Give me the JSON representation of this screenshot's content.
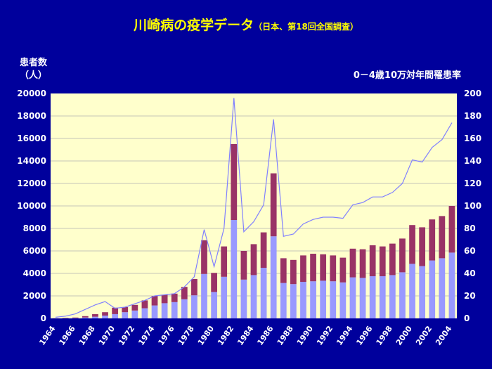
{
  "colors": {
    "background": "#00009c",
    "plot_area": "#ffffcc",
    "bar_lower": "#9999ff",
    "bar_upper": "#993366",
    "line": "#8080ff",
    "text": "#ffffff",
    "title": "#ffff00"
  },
  "chart_data": {
    "type": "bar",
    "title": "川崎病の疫学データ",
    "subtitle": "（日本、第18回全国調査）",
    "ylabel_line1": "患者数",
    "ylabel_line2": "（人）",
    "y2label": "0－4歳10万対年間罹患率",
    "ylim": [
      0,
      20000
    ],
    "y2lim": [
      0,
      200
    ],
    "yticks": [
      0,
      2000,
      4000,
      6000,
      8000,
      10000,
      12000,
      14000,
      16000,
      18000,
      20000
    ],
    "y2ticks": [
      0,
      20,
      40,
      60,
      80,
      100,
      120,
      140,
      160,
      180,
      200
    ],
    "years": [
      1964,
      1965,
      1966,
      1967,
      1968,
      1969,
      1970,
      1971,
      1972,
      1973,
      1974,
      1975,
      1976,
      1977,
      1978,
      1979,
      1980,
      1981,
      1982,
      1983,
      1984,
      1985,
      1986,
      1987,
      1988,
      1989,
      1990,
      1991,
      1992,
      1993,
      1994,
      1995,
      1996,
      1997,
      1998,
      1999,
      2000,
      2001,
      2002,
      2003,
      2004
    ],
    "xtick_labels": [
      "1964",
      "",
      "1966",
      "",
      "1968",
      "",
      "1970",
      "",
      "1972",
      "",
      "1974",
      "",
      "1976",
      "",
      "1978",
      "",
      "1980",
      "",
      "1982",
      "",
      "1984",
      "",
      "1986",
      "",
      "1988",
      "",
      "1990",
      "",
      "1992",
      "",
      "1994",
      "",
      "1996",
      "",
      "1998",
      "",
      "2000",
      "",
      "2002",
      "",
      "2004"
    ],
    "series": [
      {
        "values": [
          10,
          20,
          30,
          80,
          150,
          250,
          380,
          550,
          700,
          900,
          1150,
          1350,
          1450,
          1700,
          2050,
          3950,
          2350,
          3700,
          8750,
          3450,
          3850,
          4500,
          7300,
          3150,
          3050,
          3250,
          3300,
          3350,
          3300,
          3200,
          3650,
          3600,
          3750,
          3750,
          3850,
          4100,
          4850,
          4650,
          5150,
          5350,
          5850
        ]
      },
      {
        "values": [
          10,
          30,
          50,
          120,
          230,
          300,
          570,
          450,
          500,
          700,
          850,
          750,
          750,
          1100,
          1450,
          3000,
          1700,
          2700,
          6750,
          2550,
          2750,
          3150,
          5600,
          2200,
          2150,
          2350,
          2450,
          2350,
          2300,
          2200,
          2550,
          2550,
          2750,
          2650,
          2800,
          3000,
          3450,
          3450,
          3650,
          3750,
          4150
        ]
      },
      {
        "values": [
          1,
          2,
          4,
          8,
          12,
          15,
          9,
          10,
          13,
          16,
          20,
          21,
          22,
          28,
          37,
          79,
          46,
          80,
          196,
          77,
          86,
          101,
          177,
          73,
          75,
          84,
          88,
          90,
          90,
          89,
          101,
          103,
          108,
          108,
          112,
          120,
          141,
          139,
          152,
          159,
          174
        ]
      }
    ]
  }
}
